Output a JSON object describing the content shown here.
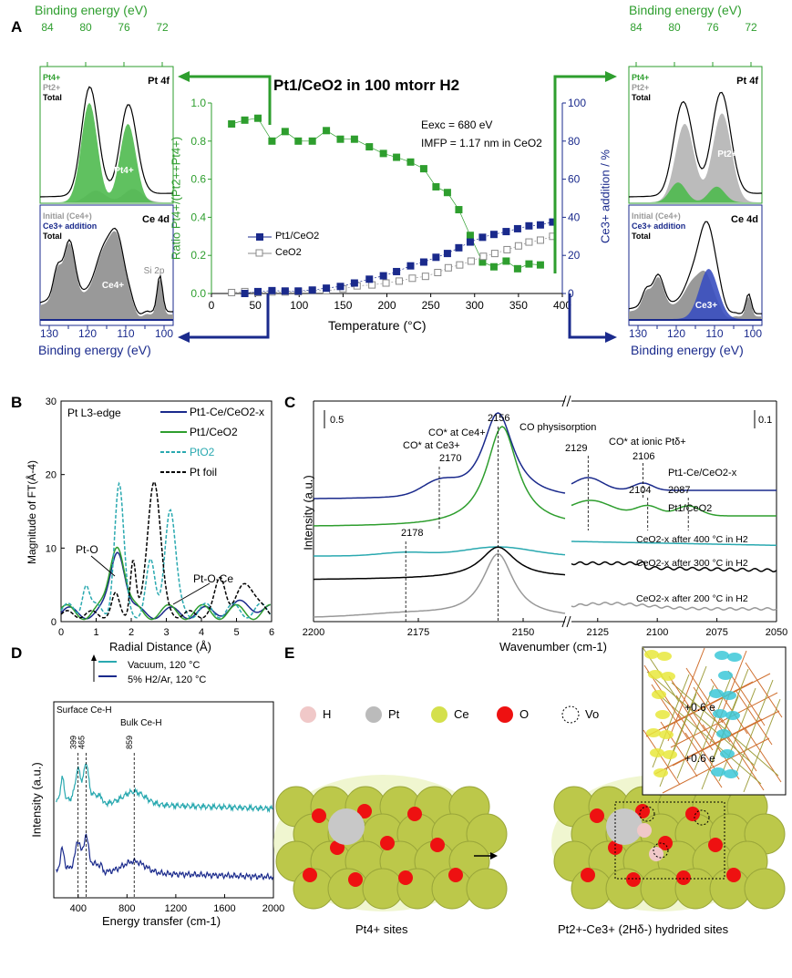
{
  "colors": {
    "green": "#2e9e2e",
    "navy": "#1a2a8c",
    "cyan": "#2aa9b0",
    "gray": "#999999",
    "black": "#000000"
  },
  "panel_labels": [
    "A",
    "B",
    "C",
    "D",
    "E"
  ],
  "chart_data": [
    {
      "id": "A-main",
      "type": "scatter",
      "title": "Pt1/CeO2 in 100 mtorr H2",
      "xlabel": "Temperature (°C)",
      "ylabel": "Ratio Pt4+/(Pt2++Pt4+)",
      "y2label": "Ce3+ addition / %",
      "xlim": [
        0,
        400
      ],
      "ylim": [
        0,
        1.0
      ],
      "y2lim": [
        0,
        100
      ],
      "xticks": [
        0,
        50,
        100,
        150,
        200,
        250,
        300,
        350,
        400
      ],
      "yticks": [
        "0.0",
        "0.2",
        "0.4",
        "0.6",
        "0.8",
        "1.0"
      ],
      "y2ticks": [
        "0",
        "20",
        "40",
        "60",
        "80",
        "100"
      ],
      "annotations": [
        "Eexc = 680 eV",
        "IMFP = 1.17 nm in CeO2"
      ],
      "ratio_series": {
        "x": [
          23,
          38,
          53,
          69,
          84,
          99,
          115,
          131,
          147,
          163,
          180,
          196,
          211,
          227,
          242,
          256,
          269,
          282,
          295,
          309,
          322,
          336,
          349,
          362,
          375
        ],
        "y": [
          0.89,
          0.91,
          0.92,
          0.8,
          0.85,
          0.8,
          0.8,
          0.855,
          0.81,
          0.81,
          0.77,
          0.735,
          0.715,
          0.69,
          0.655,
          0.56,
          0.53,
          0.44,
          0.305,
          0.165,
          0.14,
          0.17,
          0.13,
          0.155,
          0.15
        ]
      },
      "series": [
        {
          "name": "Pt1/CeO2",
          "marker": "filled-square",
          "x": [
            38,
            53,
            69,
            84,
            99,
            115,
            131,
            147,
            163,
            180,
            196,
            211,
            227,
            242,
            256,
            269,
            282,
            295,
            309,
            322,
            336,
            349,
            362,
            375,
            389
          ],
          "y": [
            0,
            1,
            1.5,
            1.3,
            1.3,
            1.8,
            2.8,
            3.7,
            5.5,
            7.5,
            9.3,
            11.5,
            14.5,
            16.5,
            19,
            21,
            24,
            27,
            29.5,
            31,
            32.5,
            34,
            35.5,
            36,
            37.5
          ]
        },
        {
          "name": "CeO2",
          "marker": "open-square",
          "x": [
            23,
            38,
            53,
            69,
            84,
            99,
            115,
            131,
            150,
            166,
            183,
            199,
            214,
            229,
            244,
            258,
            270,
            283,
            296,
            310,
            323,
            337,
            350,
            362,
            375,
            389
          ],
          "y": [
            0.5,
            1,
            0.5,
            0.8,
            0.8,
            1,
            1.5,
            1.5,
            2.5,
            4,
            4.5,
            5.5,
            6.5,
            8,
            9,
            11,
            13.5,
            15,
            17,
            19.5,
            21,
            23,
            25,
            27,
            28,
            30
          ]
        }
      ],
      "legend_placement": "center-left"
    },
    {
      "id": "A-xps-left",
      "type": "line",
      "xlabel": "Binding energy (eV)",
      "top_ticks": [
        "84",
        "80",
        "76",
        "72"
      ],
      "bottom_ticks": [
        "130",
        "125",
        "120",
        "115",
        "110",
        "105",
        "100"
      ],
      "pt4f": {
        "title": "Pt 4f",
        "legend": [
          "Pt4+",
          "Pt2+",
          "Total"
        ],
        "labels": [
          "Pt4+"
        ]
      },
      "ce4d": {
        "title": "Ce 4d",
        "legend": [
          "Initial (Ce4+)",
          "Ce3+ addition",
          "Total"
        ],
        "labels": [
          "Ce4+",
          "Si 2p"
        ]
      }
    },
    {
      "id": "A-xps-right",
      "type": "line",
      "xlabel": "Binding energy (eV)",
      "top_ticks": [
        "84",
        "80",
        "76",
        "72"
      ],
      "bottom_ticks": [
        "130",
        "125",
        "120",
        "115",
        "110",
        "105",
        "100"
      ],
      "pt4f": {
        "title": "Pt 4f",
        "legend": [
          "Pt4+",
          "Pt2+",
          "Total"
        ],
        "labels": [
          "Pt2+"
        ]
      },
      "ce4d": {
        "title": "Ce 4d",
        "legend": [
          "Initial (Ce4+)",
          "Ce3+ addition",
          "Total"
        ],
        "labels": [
          "Ce3+"
        ]
      }
    },
    {
      "id": "B",
      "type": "line",
      "xlabel": "Radial Distance (Å)",
      "ylabel": "Magnitude of FT(Å-4)",
      "xlim": [
        0,
        6
      ],
      "ylim": [
        0,
        30
      ],
      "xticks": [
        "0",
        "1",
        "2",
        "3",
        "4",
        "5",
        "6"
      ],
      "yticks": [
        "0",
        "10",
        "20",
        "30"
      ],
      "inset_title": "Pt L3-edge",
      "series": [
        {
          "name": "Pt1-Ce/CeO2-x",
          "peak": [
            1.62,
            8.9
          ]
        },
        {
          "name": "Pt1/CeO2",
          "peak": [
            1.6,
            9.8
          ]
        },
        {
          "name": "PtO2",
          "peak": [
            1.65,
            16.7
          ]
        },
        {
          "name": "Pt foil",
          "peak": [
            2.65,
            18.5
          ]
        }
      ],
      "annotations": [
        "Pt-O",
        "Pt-O-Ce"
      ],
      "legend_placement": "top-right"
    },
    {
      "id": "C",
      "type": "line",
      "xlabel": "Wavenumber (cm-1)",
      "ylabel": "Intensity (a.u.)",
      "xlim": [
        2200,
        2050
      ],
      "xticks": [
        "2200",
        "2175",
        "2150",
        "2125",
        "2100",
        "2075",
        "2050"
      ],
      "scale_bars": [
        "0.5",
        "0.1"
      ],
      "annotations": [
        "CO* at Ce4+",
        "CO physisorption",
        "CO* at Ce3+",
        "CO* at ionic Ptδ+"
      ],
      "peak_labels": [
        "2156",
        "2170",
        "2129",
        "2106",
        "2104",
        "2087",
        "2178"
      ],
      "series": [
        {
          "name": "Pt1-Ce/CeO2-x"
        },
        {
          "name": "Pt1/CeO2"
        },
        {
          "name": "CeO2-x after 400 °C in H2"
        },
        {
          "name": "CeO2-x after 300 °C in H2"
        },
        {
          "name": "CeO2-x after 200 °C in H2"
        }
      ]
    },
    {
      "id": "D",
      "type": "line",
      "xlabel": "Energy transfer (cm-1)",
      "ylabel": "Intensity (a.u.)",
      "xticks": [
        "400",
        "800",
        "1200",
        "1600",
        "2000"
      ],
      "series": [
        {
          "name": "Vacuum, 120 °C"
        },
        {
          "name": "5% H2/Ar, 120 °C"
        }
      ],
      "annotations": [
        "Surface Ce-H",
        "Bulk Ce-H"
      ],
      "peak_labels": [
        "399",
        "465",
        "859"
      ]
    }
  ],
  "panelE": {
    "legend": [
      "H",
      "Pt",
      "Ce",
      "O",
      "Vo"
    ],
    "inset_labels": [
      "+0.6 e",
      "+0.6 e"
    ],
    "captions": [
      "Pt4+ sites",
      "Pt2+-Ce3+ (2Hδ-) hydrided sites"
    ]
  }
}
